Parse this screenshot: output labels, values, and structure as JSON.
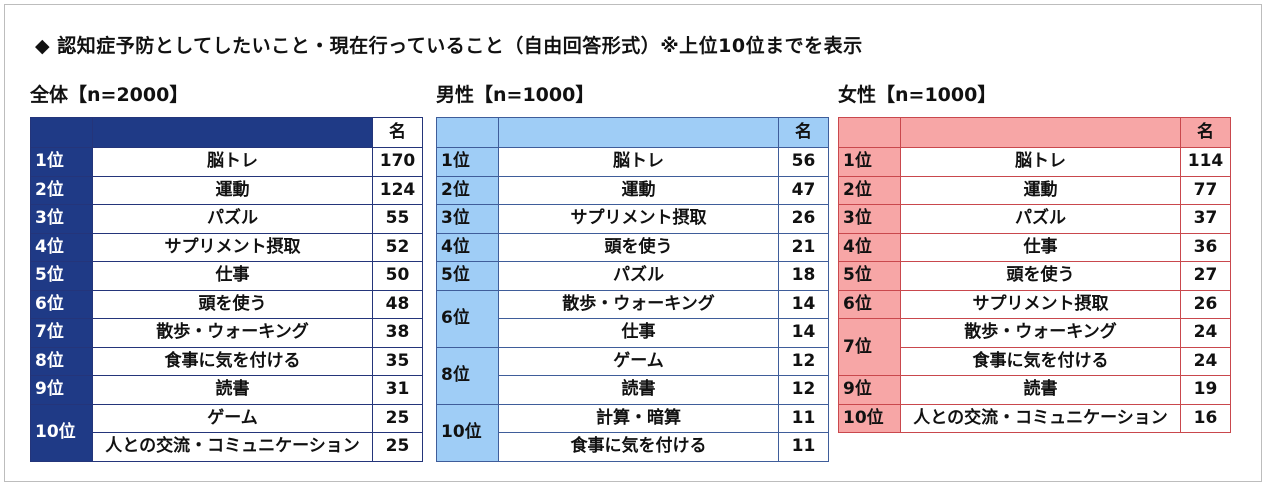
{
  "title": "◆ 認知症予防としてしたいこと・現在行っていること（自由回答形式）※上位10位までを表示",
  "colors": {
    "overall": "#1f3a86",
    "male": "#9fcdf6",
    "female": "#f7a6a6"
  },
  "tables": [
    {
      "title": "全体【n=2000】",
      "unit": "名",
      "rows": [
        {
          "rank": "1位",
          "items": [
            {
              "name": "脳トレ",
              "count": "170"
            }
          ]
        },
        {
          "rank": "2位",
          "items": [
            {
              "name": "運動",
              "count": "124"
            }
          ]
        },
        {
          "rank": "3位",
          "items": [
            {
              "name": "パズル",
              "count": "55"
            }
          ]
        },
        {
          "rank": "4位",
          "items": [
            {
              "name": "サプリメント摂取",
              "count": "52"
            }
          ]
        },
        {
          "rank": "5位",
          "items": [
            {
              "name": "仕事",
              "count": "50"
            }
          ]
        },
        {
          "rank": "6位",
          "items": [
            {
              "name": "頭を使う",
              "count": "48"
            }
          ]
        },
        {
          "rank": "7位",
          "items": [
            {
              "name": "散歩・ウォーキング",
              "count": "38"
            }
          ]
        },
        {
          "rank": "8位",
          "items": [
            {
              "name": "食事に気を付ける",
              "count": "35"
            }
          ]
        },
        {
          "rank": "9位",
          "items": [
            {
              "name": "読書",
              "count": "31"
            }
          ]
        },
        {
          "rank": "10位",
          "items": [
            {
              "name": "ゲーム",
              "count": "25"
            },
            {
              "name": "人との交流・コミュニケーション",
              "count": "25"
            }
          ]
        }
      ]
    },
    {
      "title": "男性【n=1000】",
      "unit": "名",
      "rows": [
        {
          "rank": "1位",
          "items": [
            {
              "name": "脳トレ",
              "count": "56"
            }
          ]
        },
        {
          "rank": "2位",
          "items": [
            {
              "name": "運動",
              "count": "47"
            }
          ]
        },
        {
          "rank": "3位",
          "items": [
            {
              "name": "サプリメント摂取",
              "count": "26"
            }
          ]
        },
        {
          "rank": "4位",
          "items": [
            {
              "name": "頭を使う",
              "count": "21"
            }
          ]
        },
        {
          "rank": "5位",
          "items": [
            {
              "name": "パズル",
              "count": "18"
            }
          ]
        },
        {
          "rank": "6位",
          "items": [
            {
              "name": "散歩・ウォーキング",
              "count": "14"
            },
            {
              "name": "仕事",
              "count": "14"
            }
          ]
        },
        {
          "rank": "8位",
          "items": [
            {
              "name": "ゲーム",
              "count": "12"
            },
            {
              "name": "読書",
              "count": "12"
            }
          ]
        },
        {
          "rank": "10位",
          "items": [
            {
              "name": "計算・暗算",
              "count": "11"
            },
            {
              "name": "食事に気を付ける",
              "count": "11"
            }
          ]
        }
      ]
    },
    {
      "title": "女性【n=1000】",
      "unit": "名",
      "rows": [
        {
          "rank": "1位",
          "items": [
            {
              "name": "脳トレ",
              "count": "114"
            }
          ]
        },
        {
          "rank": "2位",
          "items": [
            {
              "name": "運動",
              "count": "77"
            }
          ]
        },
        {
          "rank": "3位",
          "items": [
            {
              "name": "パズル",
              "count": "37"
            }
          ]
        },
        {
          "rank": "4位",
          "items": [
            {
              "name": "仕事",
              "count": "36"
            }
          ]
        },
        {
          "rank": "5位",
          "items": [
            {
              "name": "頭を使う",
              "count": "27"
            }
          ]
        },
        {
          "rank": "6位",
          "items": [
            {
              "name": "サプリメント摂取",
              "count": "26"
            }
          ]
        },
        {
          "rank": "7位",
          "items": [
            {
              "name": "散歩・ウォーキング",
              "count": "24"
            },
            {
              "name": "食事に気を付ける",
              "count": "24"
            }
          ]
        },
        {
          "rank": "9位",
          "items": [
            {
              "name": "読書",
              "count": "19"
            }
          ]
        },
        {
          "rank": "10位",
          "items": [
            {
              "name": "人との交流・コミュニケーション",
              "count": "16"
            }
          ]
        }
      ]
    }
  ]
}
